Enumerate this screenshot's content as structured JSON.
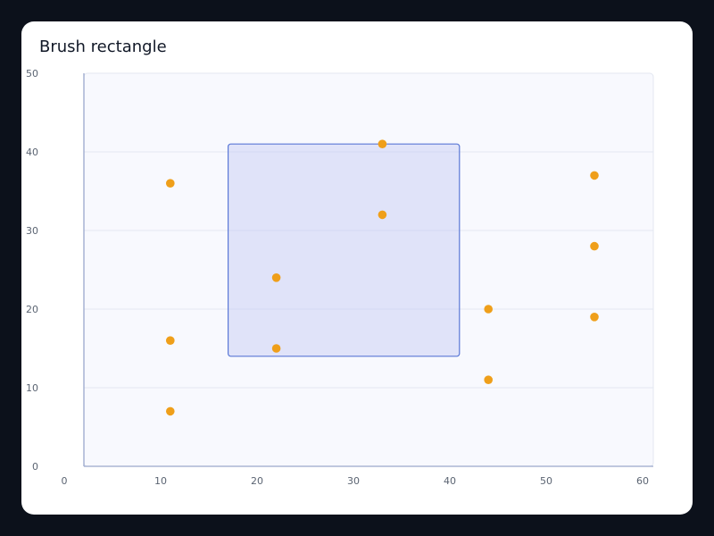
{
  "chart_data": {
    "type": "scatter",
    "title": "Brush rectangle",
    "xlabel": "",
    "ylabel": "",
    "xlim": [
      0,
      60
    ],
    "ylim": [
      0,
      50
    ],
    "x_ticks": [
      0,
      10,
      20,
      30,
      40,
      50,
      60
    ],
    "y_ticks": [
      0,
      10,
      20,
      30,
      40,
      50
    ],
    "grid": "horizontal",
    "points": [
      {
        "x": 11,
        "y": 7
      },
      {
        "x": 11,
        "y": 16
      },
      {
        "x": 11,
        "y": 36
      },
      {
        "x": 22,
        "y": 15
      },
      {
        "x": 22,
        "y": 24
      },
      {
        "x": 33,
        "y": 32
      },
      {
        "x": 33,
        "y": 41
      },
      {
        "x": 44,
        "y": 11
      },
      {
        "x": 44,
        "y": 20
      },
      {
        "x": 55,
        "y": 19
      },
      {
        "x": 55,
        "y": 28
      },
      {
        "x": 55,
        "y": 37
      }
    ],
    "brush": {
      "x0": 17,
      "x1": 41,
      "y0": 14,
      "y1": 41
    },
    "colors": {
      "point": "#ef9f1a",
      "brush_fill": "#c7cdf3",
      "brush_stroke": "#5a78d6",
      "plot_bg": "#f8f9fe",
      "grid": "#e3e7f1",
      "axis": "#9aa8cc"
    }
  }
}
